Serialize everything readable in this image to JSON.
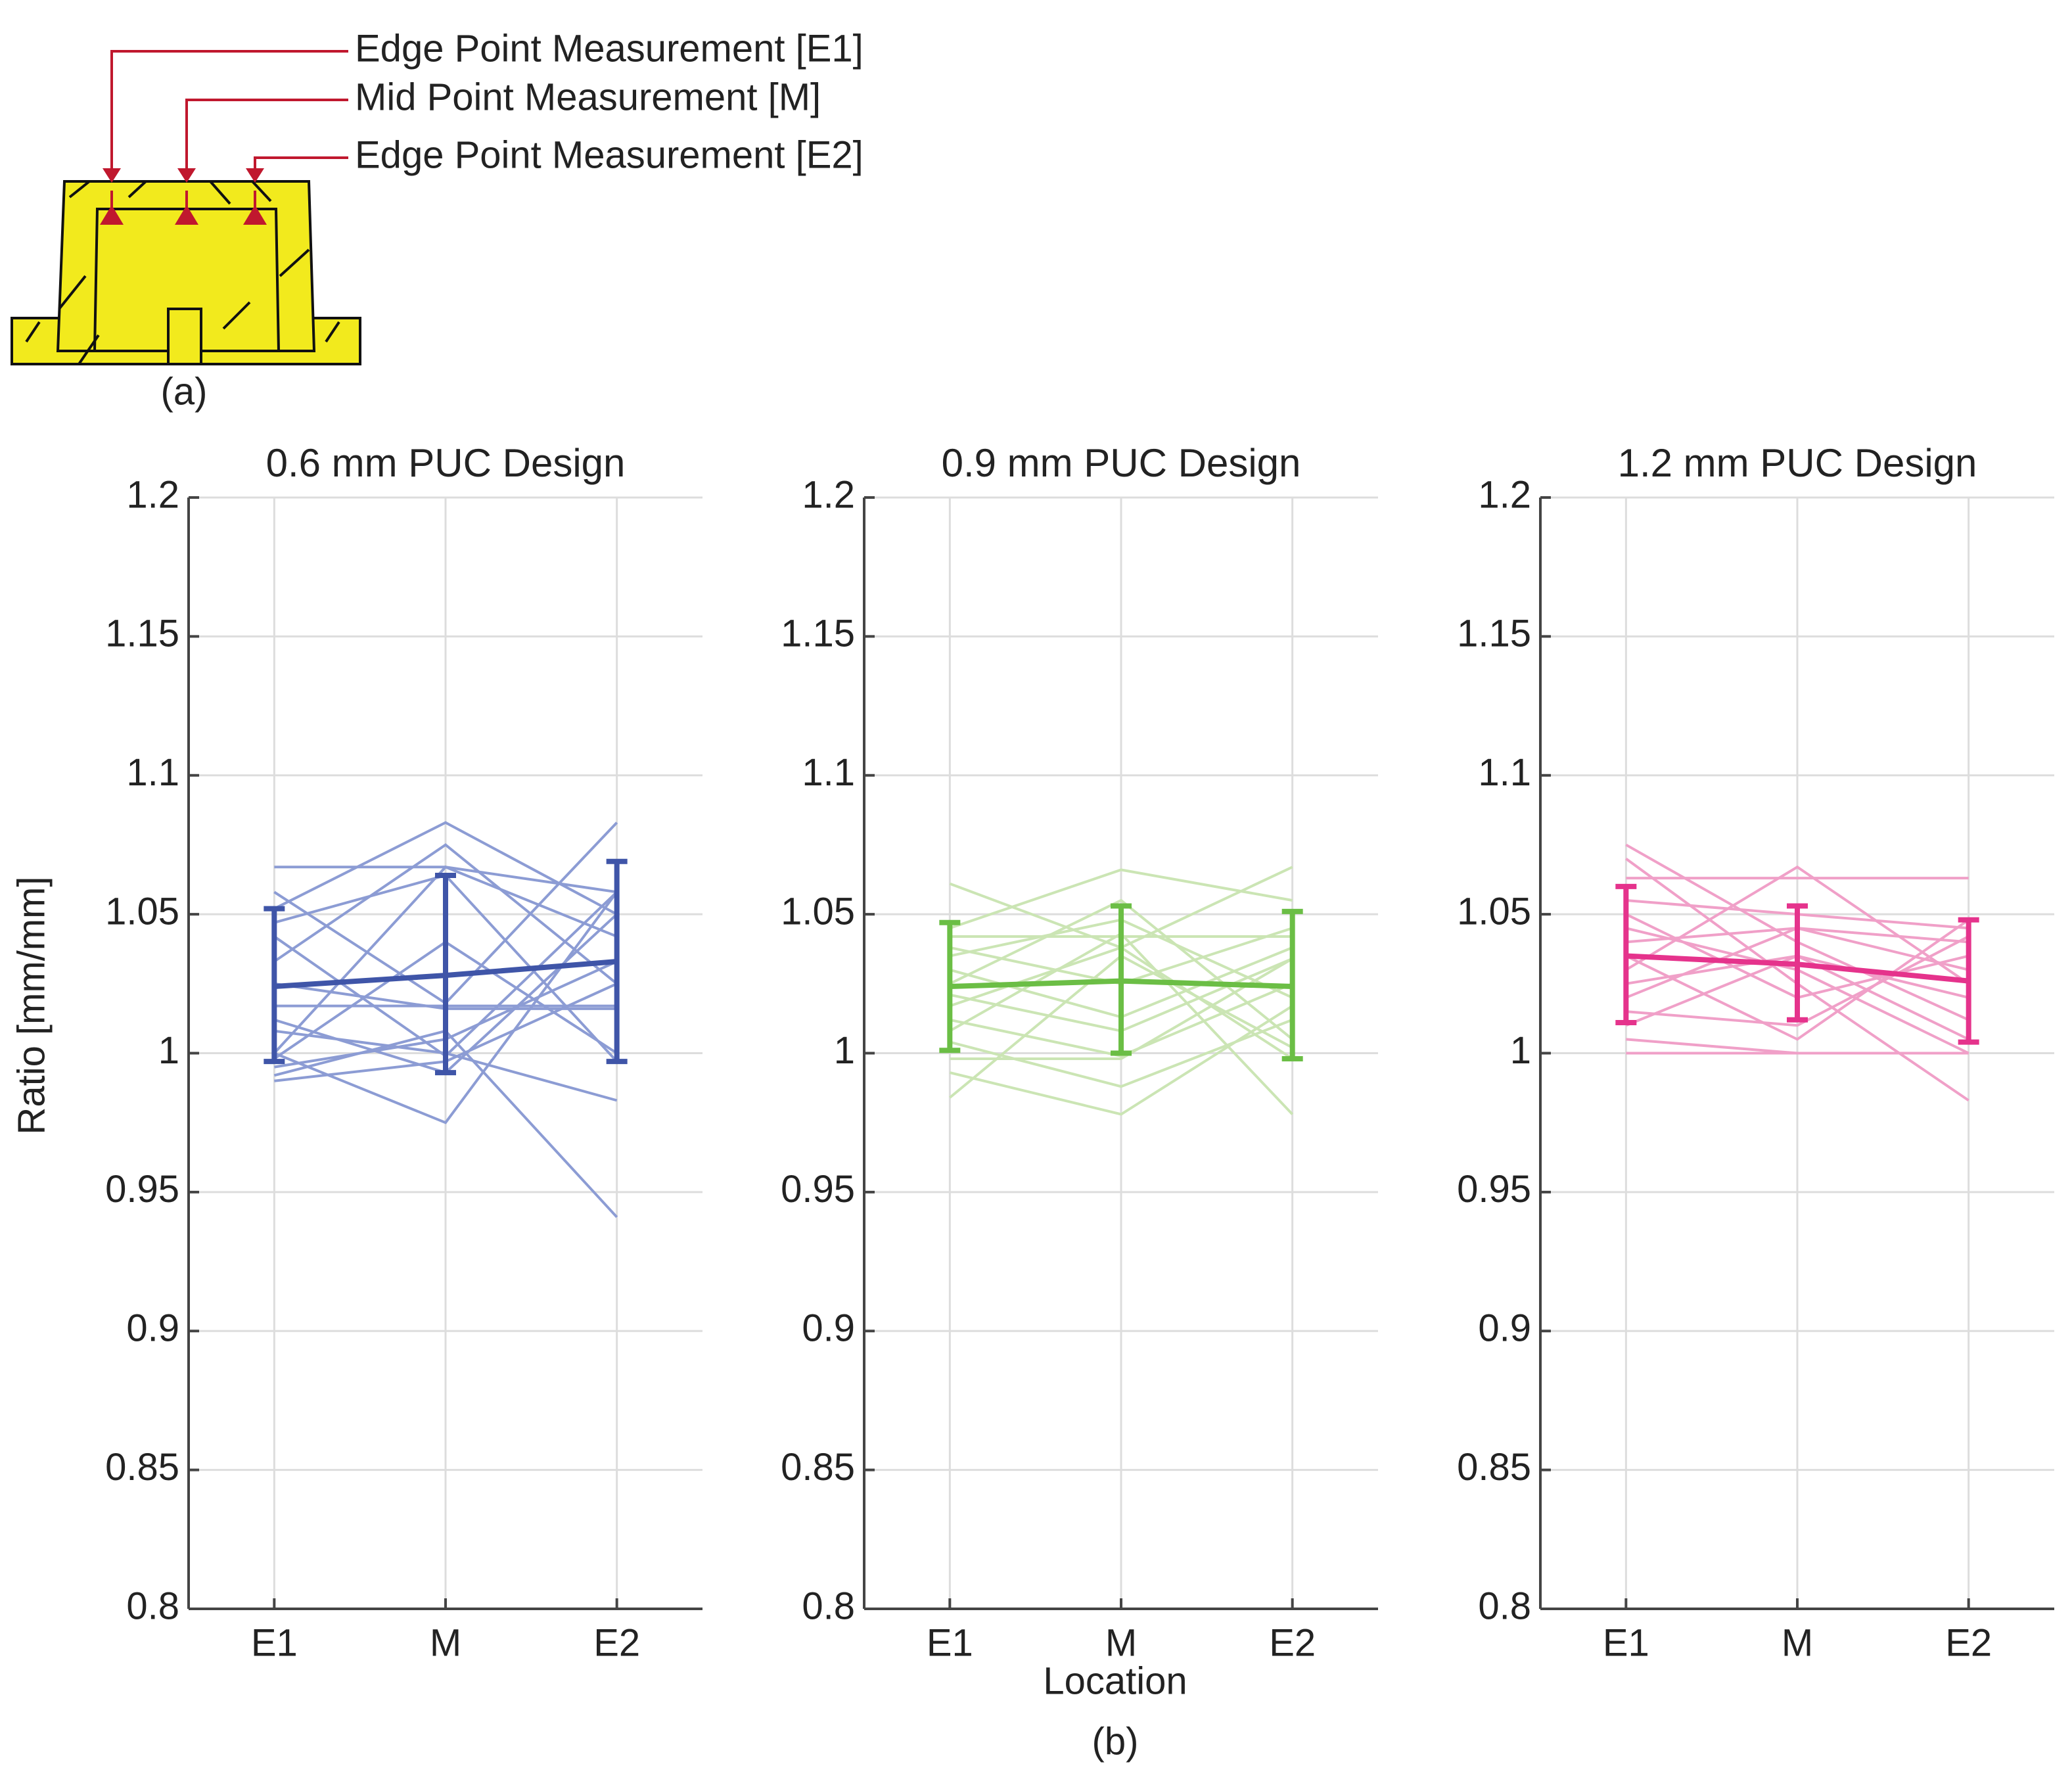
{
  "diagram": {
    "callouts": [
      "Edge Point Measurement [E1]",
      "Mid Point Measurement [M]",
      "Edge Point Measurement [E2]"
    ],
    "panel_label": "(a)",
    "fill_color": "#F2EA1D",
    "marker_color": "#C0182E"
  },
  "figure": {
    "panel_label": "(b)",
    "xlabel": "Location",
    "ylabel": "Ratio [mm/mm]"
  },
  "chart_data": [
    {
      "type": "line",
      "title": "0.6 mm PUC Design",
      "categories": [
        "E1",
        "M",
        "E2"
      ],
      "ylim": [
        0.8,
        1.2
      ],
      "yticks": [
        "0.8",
        "0.85",
        "0.9",
        "0.95",
        "1",
        "1.05",
        "1.1",
        "1.15",
        "1.2"
      ],
      "grid": true,
      "color": "#3F55A8",
      "light_color": "#8C9CD4",
      "mean": [
        1.024,
        1.028,
        1.033
      ],
      "error_low": [
        0.997,
        0.993,
        0.997
      ],
      "error_high": [
        1.052,
        1.064,
        1.069
      ],
      "individual": [
        [
          1.067,
          1.067,
          1.058
        ],
        [
          1.058,
          1.018,
          1.083
        ],
        [
          1.052,
          1.083,
          1.05
        ],
        [
          1.047,
          1.064,
          0.997
        ],
        [
          1.042,
          0.999,
          1.058
        ],
        [
          1.033,
          1.075,
          1.025
        ],
        [
          1.025,
          1.016,
          1.016
        ],
        [
          1.017,
          1.017,
          1.017
        ],
        [
          1.012,
          0.993,
          1.05
        ],
        [
          1.008,
          1.0,
          0.983
        ],
        [
          1.0,
          1.067,
          1.042
        ],
        [
          1.0,
          0.975,
          1.058
        ],
        [
          0.998,
          1.04,
          1.0
        ],
        [
          0.995,
          1.005,
          1.033
        ],
        [
          0.992,
          1.008,
          0.941
        ],
        [
          0.99,
          0.997,
          1.025
        ]
      ]
    },
    {
      "type": "line",
      "title": "0.9 mm PUC Design",
      "categories": [
        "E1",
        "M",
        "E2"
      ],
      "ylim": [
        0.8,
        1.2
      ],
      "yticks": [
        "0.8",
        "0.85",
        "0.9",
        "0.95",
        "1",
        "1.05",
        "1.1",
        "1.15",
        "1.2"
      ],
      "grid": true,
      "color": "#6BBE45",
      "light_color": "#CBE5B4",
      "mean": [
        1.024,
        1.026,
        1.024
      ],
      "error_low": [
        1.001,
        1.0,
        0.998
      ],
      "error_high": [
        1.047,
        1.053,
        1.051
      ],
      "individual": [
        [
          1.061,
          1.038,
          1.067
        ],
        [
          1.045,
          1.066,
          1.055
        ],
        [
          1.042,
          1.042,
          1.042
        ],
        [
          1.038,
          1.025,
          1.045
        ],
        [
          1.035,
          1.048,
          1.02
        ],
        [
          1.03,
          1.013,
          1.038
        ],
        [
          1.025,
          1.055,
          1.005
        ],
        [
          1.021,
          1.008,
          1.034
        ],
        [
          1.017,
          1.038,
          0.998
        ],
        [
          1.012,
          0.999,
          1.025
        ],
        [
          1.008,
          1.043,
          0.978
        ],
        [
          1.004,
          0.988,
          1.012
        ],
        [
          0.998,
          0.998,
          1.034
        ],
        [
          0.993,
          0.978,
          1.017
        ],
        [
          0.984,
          1.035,
          1.002
        ]
      ]
    },
    {
      "type": "line",
      "title": "1.2 mm PUC Design",
      "categories": [
        "E1",
        "M",
        "E2"
      ],
      "ylim": [
        0.8,
        1.2
      ],
      "yticks": [
        "0.8",
        "0.85",
        "0.9",
        "0.95",
        "1",
        "1.05",
        "1.1",
        "1.15",
        "1.2"
      ],
      "grid": true,
      "color": "#E5338C",
      "light_color": "#F0A0C8",
      "mean": [
        1.035,
        1.032,
        1.026
      ],
      "error_low": [
        1.011,
        1.012,
        1.004
      ],
      "error_high": [
        1.06,
        1.053,
        1.048
      ],
      "individual": [
        [
          1.075,
          1.04,
          1.012
        ],
        [
          1.07,
          1.025,
          0.983
        ],
        [
          1.063,
          1.063,
          1.063
        ],
        [
          1.055,
          1.05,
          1.045
        ],
        [
          1.05,
          1.02,
          1.035
        ],
        [
          1.045,
          1.03,
          1.0
        ],
        [
          1.04,
          1.045,
          1.04
        ],
        [
          1.035,
          1.005,
          1.048
        ],
        [
          1.03,
          1.067,
          1.025
        ],
        [
          1.025,
          1.035,
          1.005
        ],
        [
          1.02,
          1.045,
          1.03
        ],
        [
          1.015,
          1.01,
          1.042
        ],
        [
          1.01,
          1.035,
          1.02
        ],
        [
          1.005,
          1.0,
          1.0
        ],
        [
          1.0,
          1.0,
          1.0
        ]
      ]
    }
  ]
}
